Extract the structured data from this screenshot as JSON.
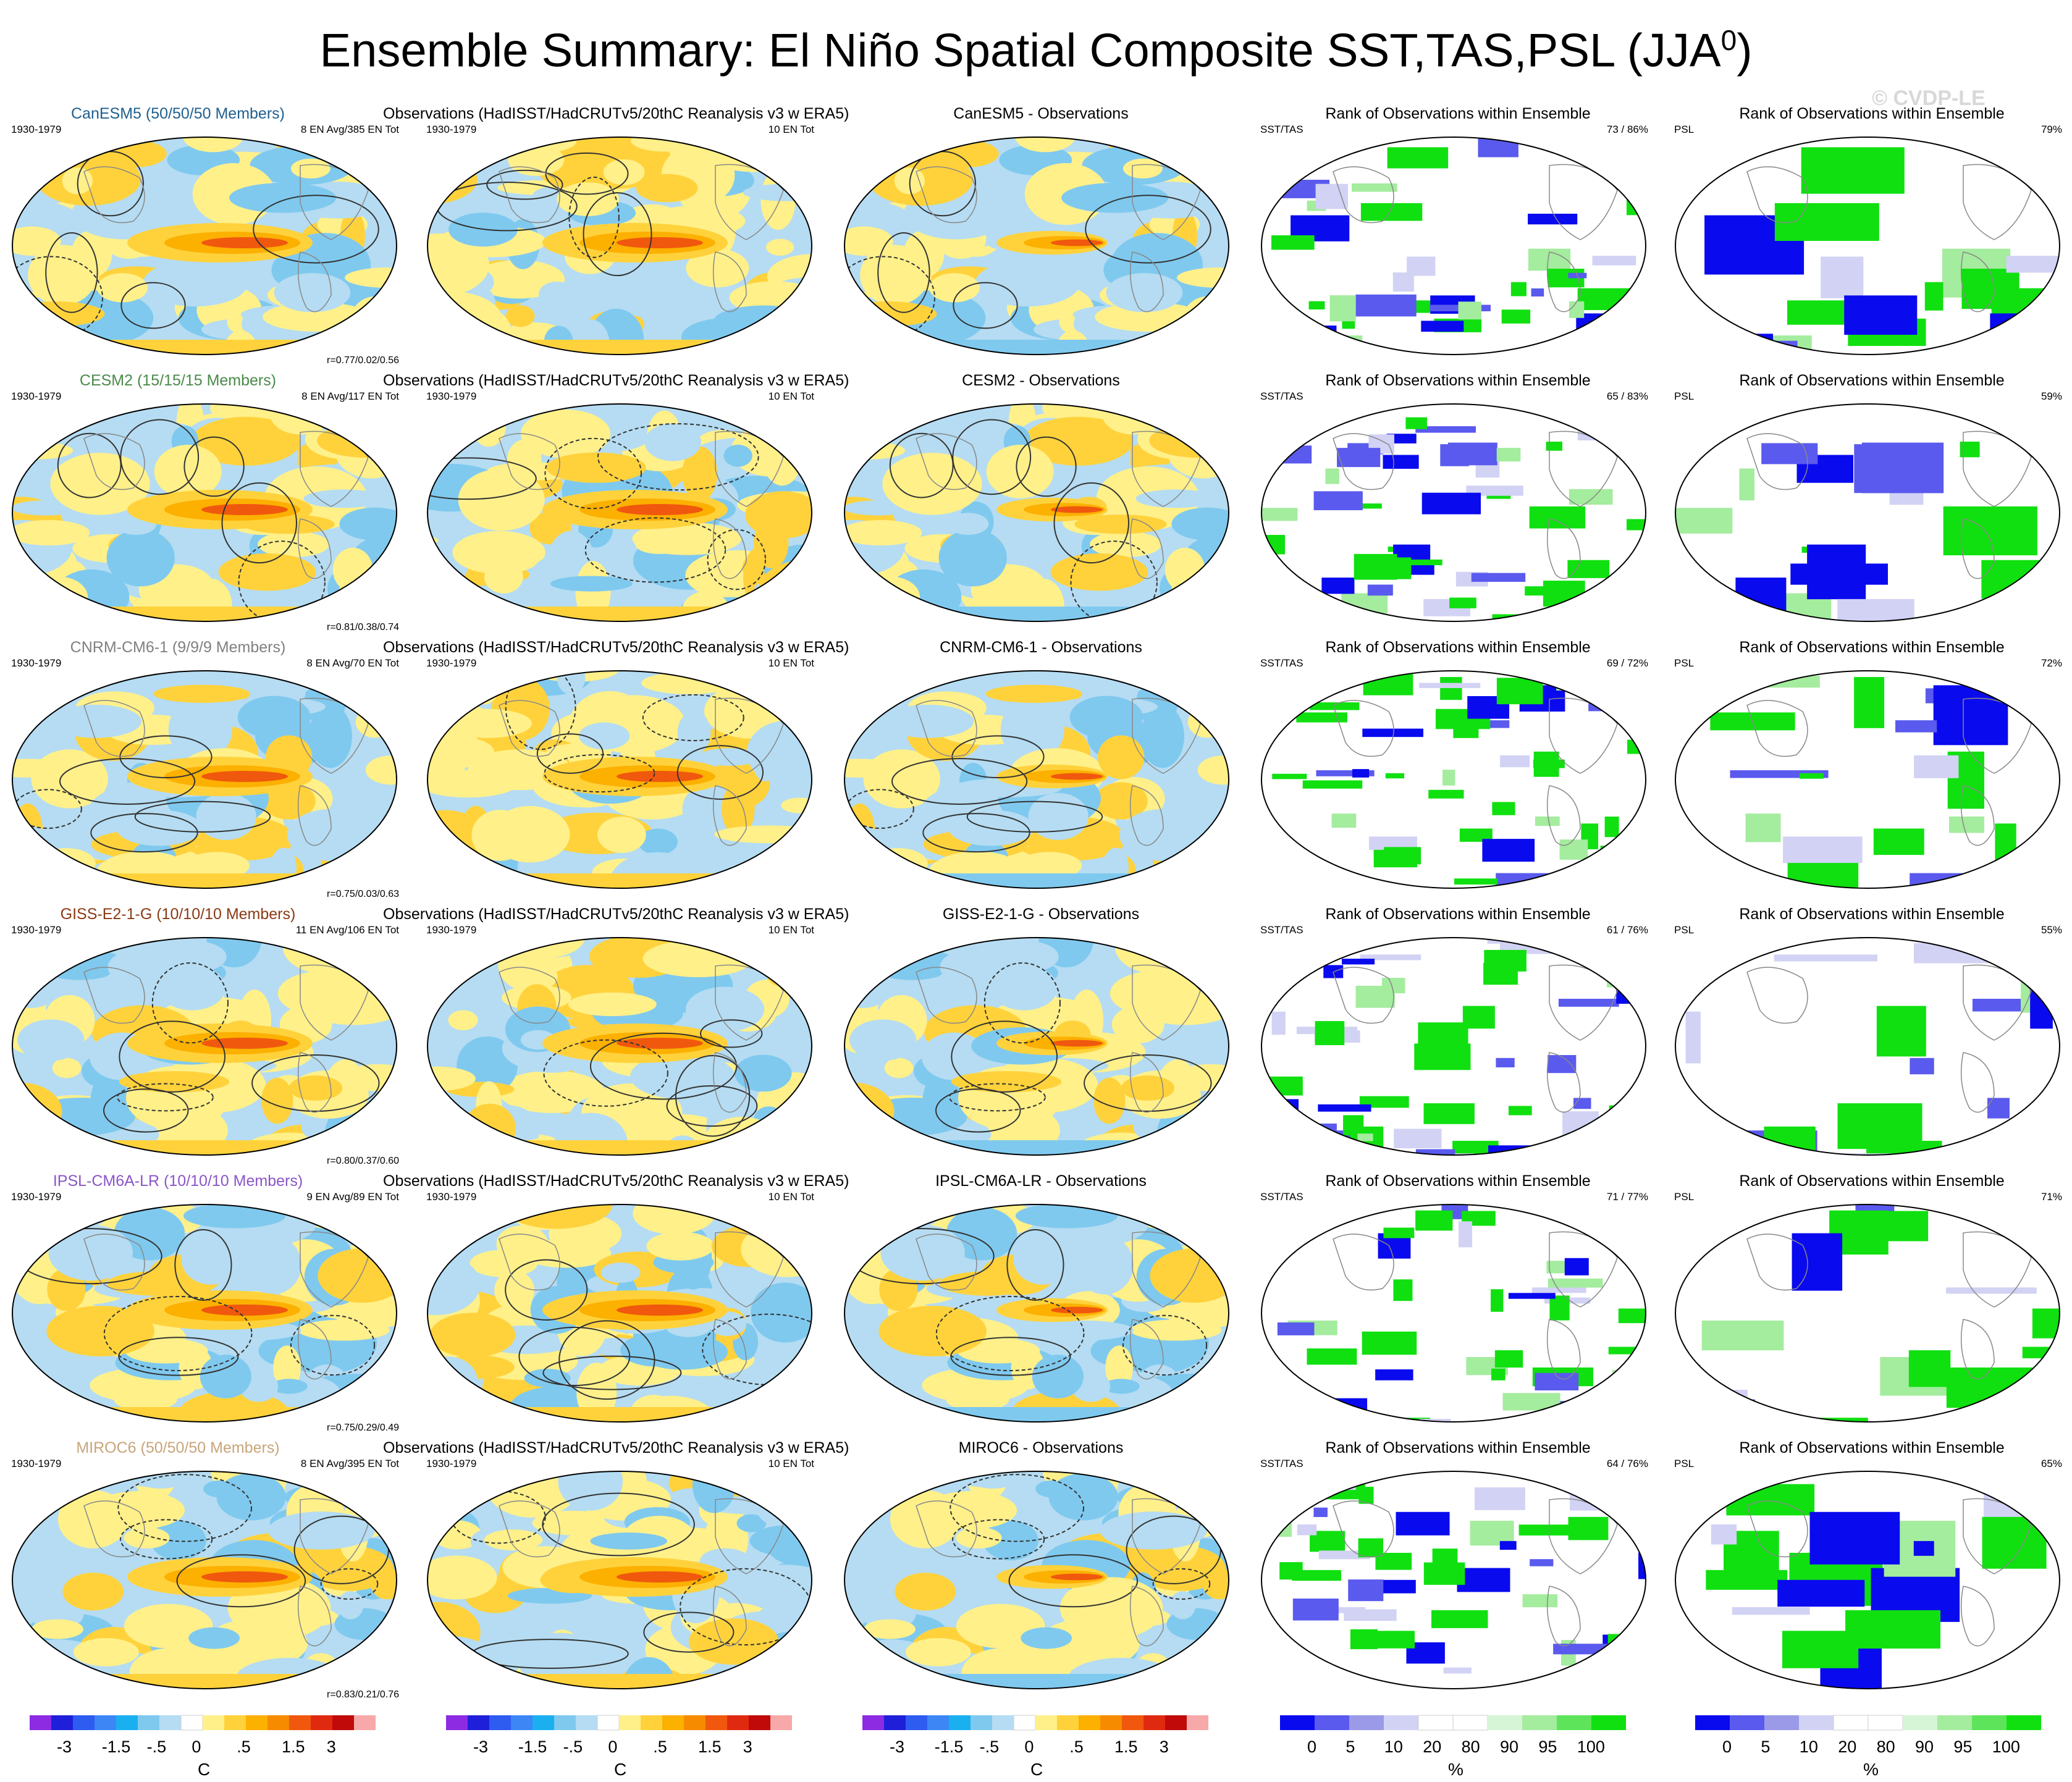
{
  "title": "Ensemble Summary: El Niño Spatial Composite SST,TAS,PSL (JJA",
  "title_sup": "0",
  "title_close": ")",
  "watermark": "© CVDP-LE",
  "period": "1930-1979",
  "obs_title": "Observations (HadISST/HadCRUTv5/20thC Reanalysis v3 w ERA5)",
  "obs_count": "10 EN Tot",
  "rank_title": "Rank of Observations within Ensemble",
  "rank_sst_label": "SST/TAS",
  "rank_psl_label": "PSL",
  "rows": [
    {
      "model_title": "CanESM5 (50/50/50 Members)",
      "model_color": "#1f5f8f",
      "model_count": "8 EN Avg/385 EN Tot",
      "corr": "r=0.77/0.02/0.56",
      "diff_title": "CanESM5 - Observations",
      "rank_sst": "73 /  86%",
      "rank_psl": "79%"
    },
    {
      "model_title": "CESM2 (15/15/15 Members)",
      "model_color": "#4a8a4a",
      "model_count": "8 EN Avg/117 EN Tot",
      "corr": "r=0.81/0.38/0.74",
      "diff_title": "CESM2 - Observations",
      "rank_sst": "65 /  83%",
      "rank_psl": "59%"
    },
    {
      "model_title": "CNRM-CM6-1 (9/9/9 Members)",
      "model_color": "#808080",
      "model_count": "8 EN Avg/70 EN Tot",
      "corr": "r=0.75/0.03/0.63",
      "diff_title": "CNRM-CM6-1 - Observations",
      "rank_sst": "69 /  72%",
      "rank_psl": "72%"
    },
    {
      "model_title": "GISS-E2-1-G (10/10/10 Members)",
      "model_color": "#8a3a14",
      "model_count": "11 EN Avg/106 EN Tot",
      "corr": "r=0.80/0.37/0.60",
      "diff_title": "GISS-E2-1-G - Observations",
      "rank_sst": "61 /  76%",
      "rank_psl": "55%"
    },
    {
      "model_title": "IPSL-CM6A-LR (10/10/10 Members)",
      "model_color": "#8a55c8",
      "model_count": "9 EN Avg/89 EN Tot",
      "corr": "r=0.75/0.29/0.49",
      "diff_title": "IPSL-CM6A-LR - Observations",
      "rank_sst": "71 /  77%",
      "rank_psl": "71%"
    },
    {
      "model_title": "MIROC6 (50/50/50 Members)",
      "model_color": "#c8a57a",
      "model_count": "8 EN Avg/395 EN Tot",
      "corr": "r=0.83/0.21/0.76",
      "diff_title": "MIROC6 - Observations",
      "rank_sst": "64 /  76%",
      "rank_psl": "65%"
    }
  ],
  "colorbar_temp": {
    "colors": [
      "#8c2be2",
      "#1f1fd9",
      "#2e5cf0",
      "#3d86f5",
      "#1ab0f0",
      "#7fc9ef",
      "#b5dcf2",
      "#ffffff",
      "#fff08a",
      "#ffd23c",
      "#fcb000",
      "#f78b00",
      "#f0580e",
      "#e02a10",
      "#c00a0a",
      "#f7a8a8"
    ],
    "tick_labels": [
      "-3",
      "-1.5",
      "-.5",
      "0",
      ".5",
      "1.5",
      "3"
    ],
    "unit": "C"
  },
  "colorbar_rank": {
    "colors": [
      "#0a0aee",
      "#5a5aee",
      "#9a9ae8",
      "#d2d2f4",
      "#ffffff",
      "#ffffff",
      "#d6f4d6",
      "#a4ec9e",
      "#5ee45a",
      "#10e010"
    ],
    "tick_labels": [
      "0",
      "5",
      "10",
      "20",
      "80",
      "90",
      "95",
      "100"
    ],
    "unit": "%"
  },
  "icons": {
    "map": "robinson-globe-map"
  }
}
